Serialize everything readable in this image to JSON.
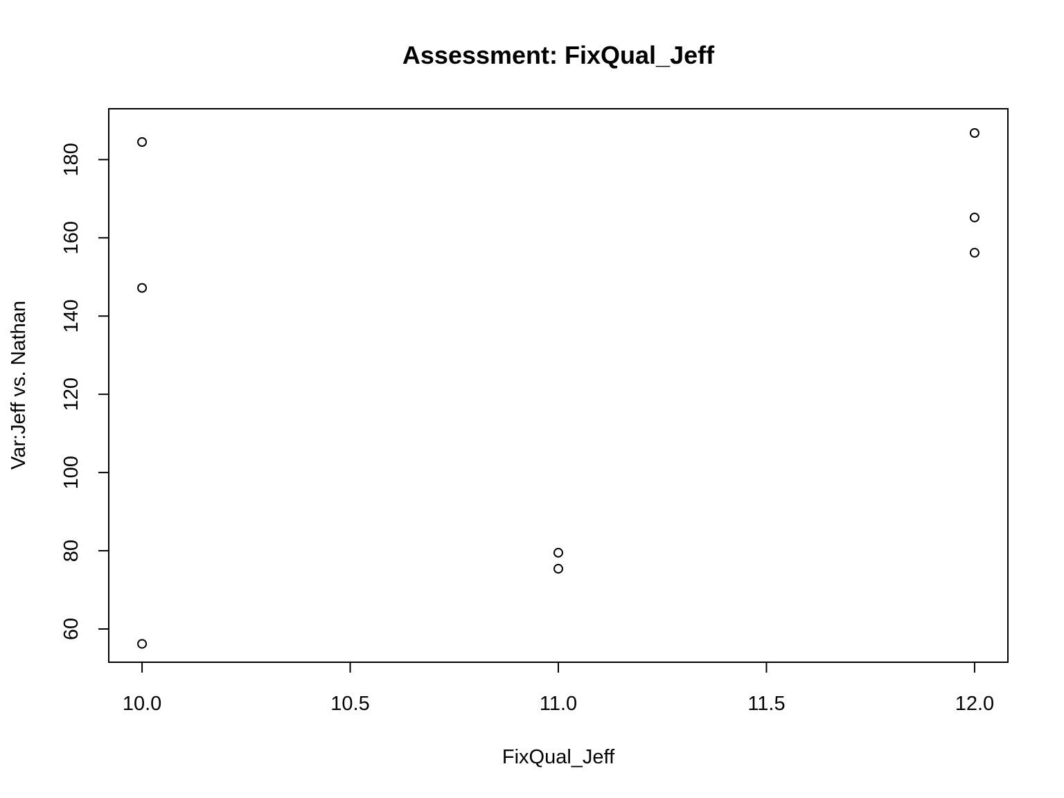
{
  "chart_data": {
    "type": "scatter",
    "title": "Assessment: FixQual_Jeff",
    "xlabel": "FixQual_Jeff",
    "ylabel": "Var:Jeff vs. Nathan",
    "xlim": [
      9.92,
      12.08
    ],
    "ylim": [
      51.5,
      193
    ],
    "x_ticks": [
      10.0,
      10.5,
      11.0,
      11.5,
      12.0
    ],
    "x_tick_labels": [
      "10.0",
      "10.5",
      "11.0",
      "11.5",
      "12.0"
    ],
    "y_ticks": [
      60,
      80,
      100,
      120,
      140,
      160,
      180
    ],
    "y_tick_labels": [
      "60",
      "80",
      "100",
      "120",
      "140",
      "160",
      "180"
    ],
    "grid": false,
    "points": [
      {
        "x": 10,
        "y": 184.5
      },
      {
        "x": 10,
        "y": 147.2
      },
      {
        "x": 10,
        "y": 56.2
      },
      {
        "x": 11,
        "y": 79.5
      },
      {
        "x": 11,
        "y": 75.4
      },
      {
        "x": 12,
        "y": 186.8
      },
      {
        "x": 12,
        "y": 165.2
      },
      {
        "x": 12,
        "y": 156.2
      }
    ],
    "marker": "open-circle",
    "colors": {
      "points": "#000000",
      "axes": "#000000",
      "background": "#ffffff"
    }
  }
}
